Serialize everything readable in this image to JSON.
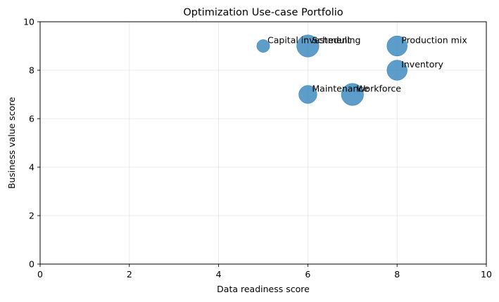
{
  "chart_data": {
    "type": "scatter",
    "title": "Optimization Use-case Portfolio",
    "xlabel": "Data readiness score",
    "ylabel": "Business value score",
    "xlim": [
      0,
      10
    ],
    "ylim": [
      0,
      10
    ],
    "xticks": [
      0,
      2,
      4,
      6,
      8,
      10
    ],
    "yticks": [
      0,
      2,
      4,
      6,
      8,
      10
    ],
    "grid": true,
    "color": "#1f77b4",
    "points": [
      {
        "label": "Capital investment",
        "x": 5,
        "y": 9,
        "size": 1
      },
      {
        "label": "Scheduling",
        "x": 6,
        "y": 9,
        "size": 3
      },
      {
        "label": "Production mix",
        "x": 8,
        "y": 9,
        "size": 2.5
      },
      {
        "label": "Inventory",
        "x": 8,
        "y": 8,
        "size": 2.5
      },
      {
        "label": "Maintenance",
        "x": 6,
        "y": 7,
        "size": 2
      },
      {
        "label": "Workforce",
        "x": 7,
        "y": 7,
        "size": 3
      }
    ]
  }
}
